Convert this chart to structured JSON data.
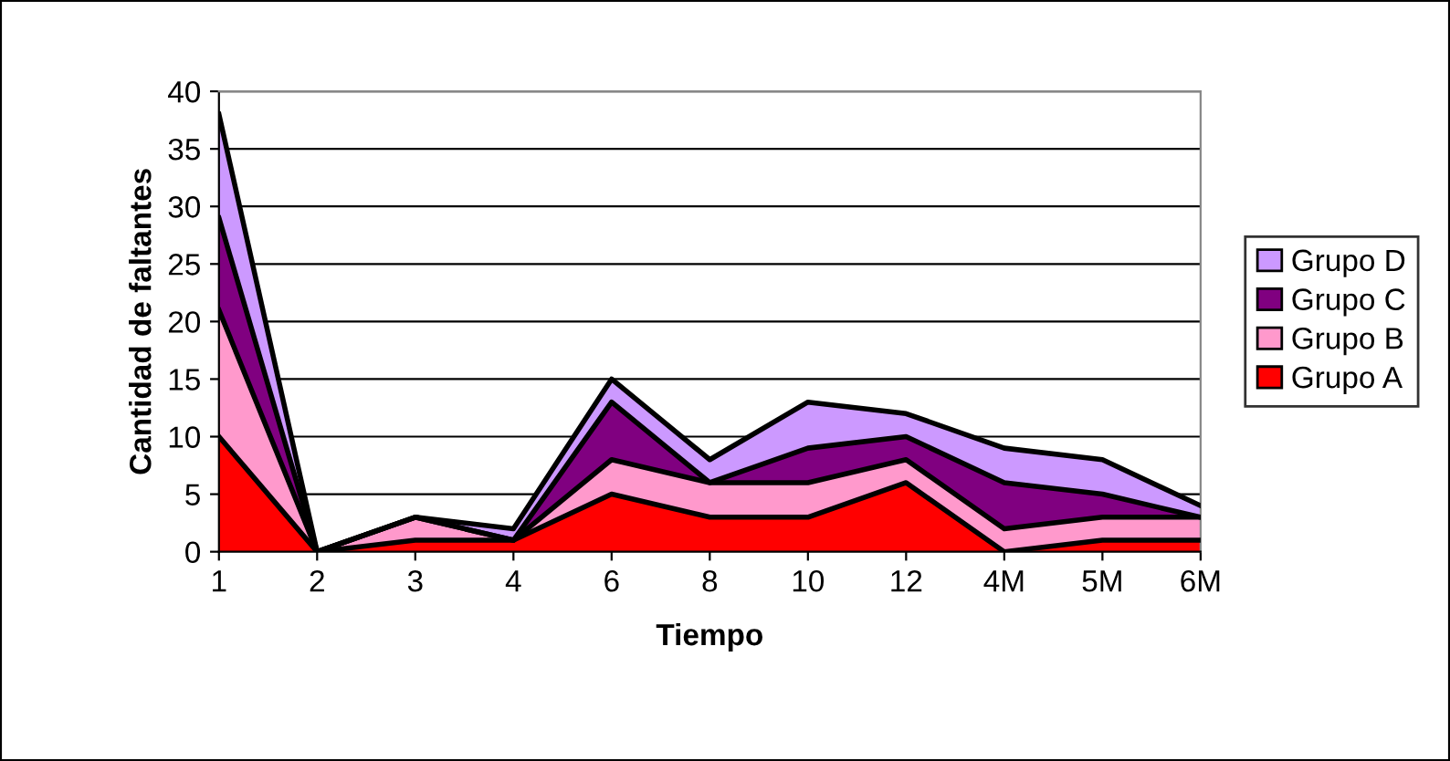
{
  "chart_data": {
    "type": "area",
    "stacked": true,
    "xlabel": "Tiempo",
    "ylabel": "Cantidad de faltantes",
    "categories": [
      "1",
      "2",
      "3",
      "4",
      "6",
      "8",
      "10",
      "12",
      "4M",
      "5M",
      "6M"
    ],
    "ylim": [
      0,
      40
    ],
    "yticks": [
      0,
      5,
      10,
      15,
      20,
      25,
      30,
      35,
      40
    ],
    "grid": "y",
    "legend": "right",
    "series": [
      {
        "name": "Grupo A",
        "color": "#ff0000",
        "values": [
          10,
          0,
          1,
          1,
          5,
          3,
          3,
          6,
          0,
          1,
          1
        ]
      },
      {
        "name": "Grupo B",
        "color": "#ff99cc",
        "values": [
          11,
          0,
          2,
          0,
          3,
          3,
          3,
          2,
          2,
          2,
          2
        ]
      },
      {
        "name": "Grupo C",
        "color": "#800080",
        "values": [
          8,
          0,
          0,
          0,
          5,
          0,
          3,
          2,
          4,
          2,
          0
        ]
      },
      {
        "name": "Grupo D",
        "color": "#cc99ff",
        "values": [
          9,
          0,
          0,
          1,
          2,
          2,
          4,
          2,
          3,
          3,
          1
        ]
      }
    ]
  }
}
